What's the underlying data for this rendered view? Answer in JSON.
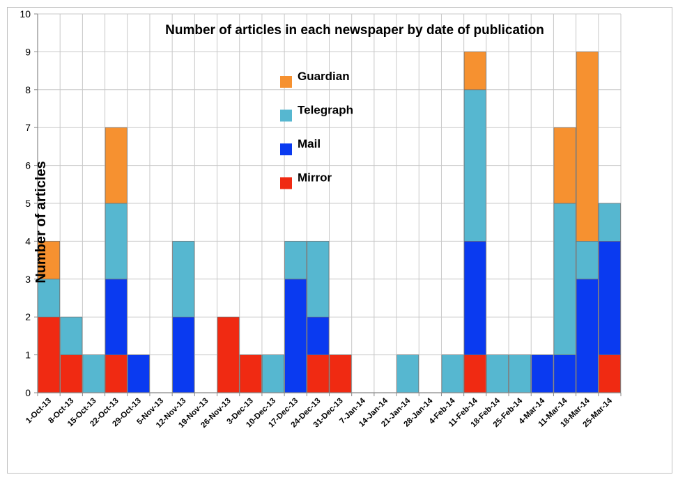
{
  "chart_data": {
    "type": "bar",
    "stacked": true,
    "title": "Number of articles in each newspaper by date of publication",
    "xlabel": "",
    "ylabel": "Number of articles",
    "ylim": [
      0,
      10
    ],
    "yticks": [
      "0",
      "1",
      "2",
      "3",
      "4",
      "5",
      "6",
      "7",
      "8",
      "9",
      "10"
    ],
    "grid": true,
    "legend_position": "top-center",
    "categories": [
      "1-Oct-13",
      "8-Oct-13",
      "15-Oct-13",
      "22-Oct-13",
      "29-Oct-13",
      "5-Nov-13",
      "12-Nov-13",
      "19-Nov-13",
      "26-Nov-13",
      "3-Dec-13",
      "10-Dec-13",
      "17-Dec-13",
      "24-Dec-13",
      "31-Dec-13",
      "7-Jan-14",
      "14-Jan-14",
      "21-Jan-14",
      "28-Jan-14",
      "4-Feb-14",
      "11-Feb-14",
      "18-Feb-14",
      "25-Feb-14",
      "4-Mar-14",
      "11-Mar-14",
      "18-Mar-14",
      "25-Mar-14"
    ],
    "series": [
      {
        "name": "Mirror",
        "color": "#f02a12",
        "values": [
          2,
          1,
          0,
          1,
          0,
          0,
          0,
          0,
          2,
          1,
          0,
          0,
          1,
          1,
          0,
          0,
          0,
          0,
          0,
          1,
          0,
          0,
          0,
          0,
          0,
          1
        ]
      },
      {
        "name": "Mail",
        "color": "#0a3af0",
        "values": [
          0,
          0,
          0,
          2,
          1,
          0,
          2,
          0,
          0,
          0,
          0,
          3,
          1,
          0,
          0,
          0,
          0,
          0,
          0,
          3,
          0,
          0,
          1,
          1,
          3,
          3
        ]
      },
      {
        "name": "Telegraph",
        "color": "#56b7d0",
        "values": [
          1,
          1,
          1,
          2,
          0,
          0,
          2,
          0,
          0,
          0,
          1,
          1,
          2,
          0,
          0,
          0,
          1,
          0,
          1,
          4,
          1,
          1,
          0,
          4,
          1,
          1
        ]
      },
      {
        "name": "Guardian",
        "color": "#f69130",
        "values": [
          1,
          0,
          0,
          2,
          0,
          0,
          0,
          0,
          0,
          0,
          0,
          0,
          0,
          0,
          0,
          0,
          0,
          0,
          0,
          1,
          0,
          0,
          0,
          2,
          5,
          0
        ]
      }
    ],
    "legend_order": [
      "Guardian",
      "Telegraph",
      "Mail",
      "Mirror"
    ]
  }
}
